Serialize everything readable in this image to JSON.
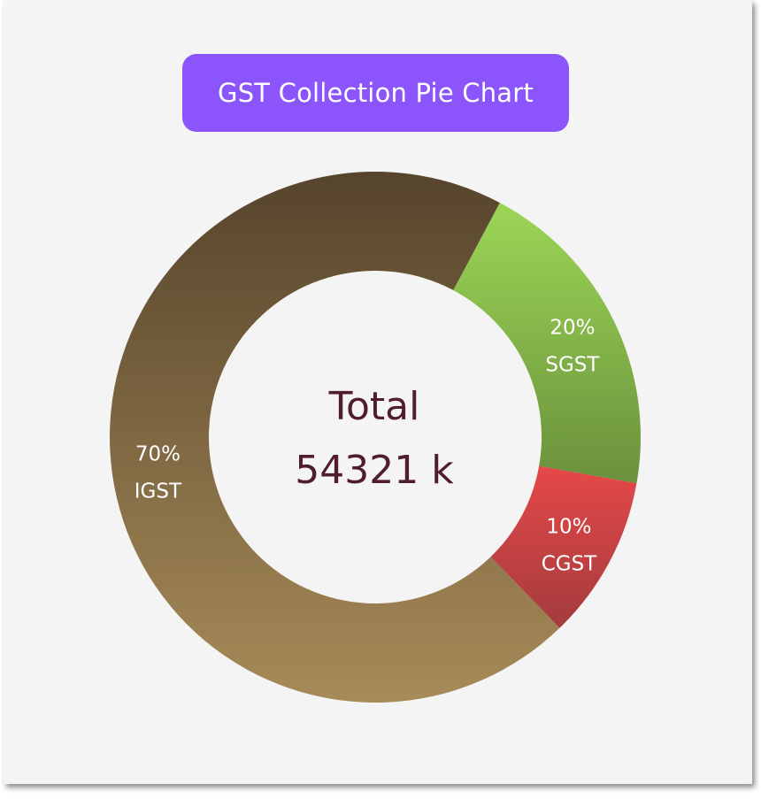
{
  "chart_data": {
    "type": "pie",
    "style": "donut",
    "title": "GST Collection Pie Chart",
    "center_label": {
      "line1": "Total",
      "line2": "54321 k"
    },
    "slices": [
      {
        "label": "IGST",
        "percent_label": "70%",
        "value": 70,
        "color_top": "#56442c",
        "color_bottom": "#a78b58"
      },
      {
        "label": "SGST",
        "percent_label": "20%",
        "value": 20,
        "color_top": "#9cd656",
        "color_bottom": "#6a913c"
      },
      {
        "label": "CGST",
        "percent_label": "10%",
        "value": 10,
        "color_top": "#e64848",
        "color_bottom": "#a33b3e"
      }
    ],
    "legend": "none"
  },
  "colors": {
    "background": "#f4f4f4",
    "title_background": "#8c55fb",
    "title_text": "#ffffff",
    "center_text": "#4f1c32"
  }
}
